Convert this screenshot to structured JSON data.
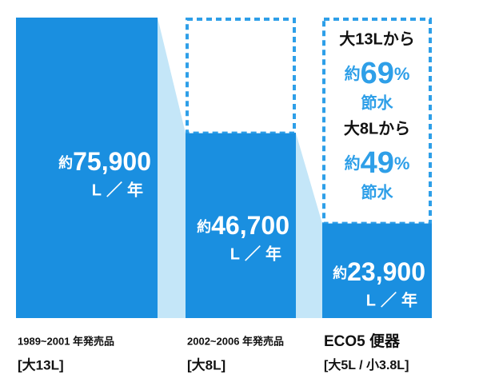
{
  "chart_data": {
    "type": "bar",
    "categories": [
      "1989~2001 年発売品",
      "2002~2006 年発売品",
      "ECO5 便器"
    ],
    "sublabels": [
      "[大13L]",
      "[大8L]",
      "[大5L / 小3.8L]"
    ],
    "values": [
      75900,
      46700,
      23900
    ],
    "value_labels": [
      "75,900",
      "46,700",
      "23,900"
    ],
    "label_prefix": "約",
    "unit": "L／年",
    "color": "#1a8fe0",
    "connector_color": "#c4e6f8",
    "savings_color": "#2e9fe8",
    "ylim": [
      0,
      75900
    ],
    "annotations": [
      {
        "from": "大13Lから",
        "prefix": "約",
        "value": 69,
        "unit": "%",
        "suffix": "節水"
      },
      {
        "from": "大8Lから",
        "prefix": "約",
        "value": 49,
        "unit": "%",
        "suffix": "節水"
      }
    ]
  }
}
